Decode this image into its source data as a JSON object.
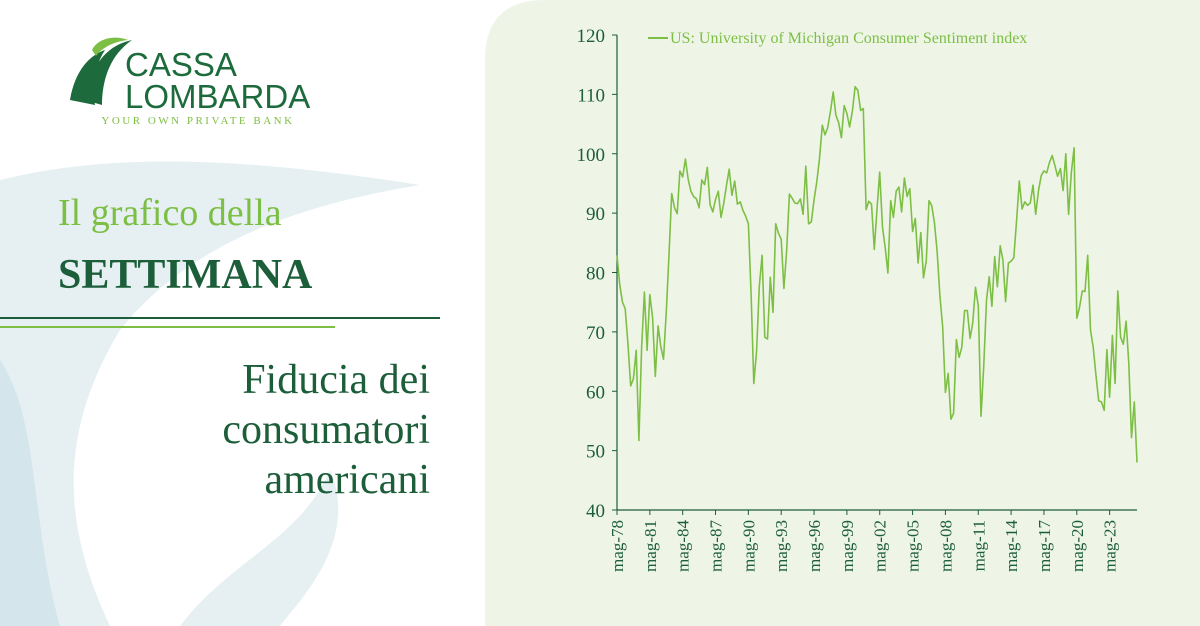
{
  "logo": {
    "line1": "CASSA",
    "line2": "LOMBARDA",
    "tagline": "YOUR OWN PRIVATE BANK"
  },
  "heading": {
    "line1": "Il grafico della",
    "line2": "SETTIMANA"
  },
  "subject": {
    "lines": [
      "Fiducia dei",
      "consumatori",
      "americani"
    ]
  },
  "chart_data": {
    "type": "line",
    "categories": [
      "mag-78",
      null,
      null,
      null,
      null,
      null,
      null,
      null,
      null,
      null,
      null,
      null,
      "mag-81",
      null,
      null,
      null,
      null,
      null,
      null,
      null,
      null,
      null,
      null,
      null,
      "mag-84",
      null,
      null,
      null,
      null,
      null,
      null,
      null,
      null,
      null,
      null,
      null,
      "mag-87",
      null,
      null,
      null,
      null,
      null,
      null,
      null,
      null,
      null,
      null,
      null,
      "mag-90",
      null,
      null,
      null,
      null,
      null,
      null,
      null,
      null,
      null,
      null,
      null,
      "mag-93",
      null,
      null,
      null,
      null,
      null,
      null,
      null,
      null,
      null,
      null,
      null,
      "mag-96",
      null,
      null,
      null,
      null,
      null,
      null,
      null,
      null,
      null,
      null,
      null,
      "mag-99",
      null,
      null,
      null,
      null,
      null,
      null,
      null,
      null,
      null,
      null,
      null,
      "mag-02",
      null,
      null,
      null,
      null,
      null,
      null,
      null,
      null,
      null,
      null,
      null,
      "mag-05",
      null,
      null,
      null,
      null,
      null,
      null,
      null,
      null,
      null,
      null,
      null,
      "mag-08",
      null,
      null,
      null,
      null,
      null,
      null,
      null,
      null,
      null,
      null,
      null,
      "mag-11",
      null,
      null,
      null,
      null,
      null,
      null,
      null,
      null,
      null,
      null,
      null,
      "mag-14",
      null,
      null,
      null,
      null,
      null,
      null,
      null,
      null,
      null,
      null,
      null,
      "mag-17",
      null,
      null,
      null,
      null,
      null,
      null,
      null,
      null,
      null,
      null,
      null,
      "mag-20",
      null,
      null,
      null,
      null,
      null,
      null,
      null,
      null,
      null,
      null,
      null,
      "mag-23",
      null,
      null,
      null,
      null,
      null,
      null,
      null,
      null,
      null,
      null
    ],
    "series": [
      {
        "name": "US: University of Michigan Consumer Sentiment index",
        "color": "#7dbf45",
        "values": [
          82.9,
          78,
          75,
          73.9,
          68.1,
          60.9,
          62.1,
          66.9,
          51.7,
          67.3,
          76.7,
          66.9,
          76.3,
          72.4,
          62.5,
          71.0,
          67.5,
          65.4,
          73.4,
          83.0,
          93.3,
          90.9,
          89.9,
          97.1,
          96.1,
          99.1,
          95.7,
          93.7,
          92.8,
          92.4,
          90.9,
          95.6,
          94.8,
          97.7,
          91.4,
          90.2,
          92.3,
          93.7,
          89.3,
          91.6,
          94.7,
          97.4,
          93.0,
          95.4,
          91.5,
          91.9,
          90.5,
          89.5,
          88.2,
          76.4,
          61.3,
          66.8,
          77.7,
          82.9,
          69.1,
          68.8,
          79.2,
          73.3,
          88.2,
          86.6,
          85.6,
          77.3,
          83.8,
          93.2,
          92.5,
          91.7,
          91.6,
          92.4,
          89.8,
          97.9,
          88.2,
          88.5,
          92.3,
          95.3,
          99.2,
          104.8,
          103.2,
          104.4,
          107.2,
          110.4,
          106.5,
          105.2,
          102.7,
          108.1,
          106.8,
          104.5,
          107.2,
          111.3,
          110.7,
          107.3,
          107.6,
          90.6,
          92.0,
          91.5,
          83.9,
          90.7,
          96.9,
          87.6,
          84.2,
          79.9,
          92.1,
          89.3,
          93.7,
          94.4,
          90.2,
          95.9,
          92.8,
          94.1,
          86.9,
          89.1,
          81.6,
          86.7,
          79.1,
          82.0,
          92.1,
          91.3,
          88.3,
          83.4,
          76.1,
          70.8,
          59.8,
          63.0,
          55.3,
          56.3,
          68.7,
          65.7,
          67.4,
          73.6,
          73.6,
          68.9,
          71.6,
          77.5,
          74.3,
          55.8,
          64.1,
          75.3,
          79.3,
          74.3,
          82.7,
          77.6,
          84.5,
          82.1,
          75.1,
          81.6,
          81.9,
          82.5,
          88.8,
          95.4,
          90.7,
          91.9,
          91.3,
          91.7,
          94.7,
          89.8,
          93.8,
          96.3,
          97.1,
          96.8,
          98.5,
          99.7,
          98.0,
          96.2,
          97.5,
          93.8,
          100.0,
          89.8,
          96.8,
          101.0,
          72.3,
          74.1,
          76.9,
          76.8,
          82.9,
          70.3,
          67.4,
          62.8,
          58.4,
          58.2,
          56.8,
          67.0,
          59.0,
          69.4,
          61.3,
          76.9,
          69.1,
          67.9,
          71.8,
          64.7,
          52.2,
          58.2,
          48.0
        ]
      }
    ],
    "ylim": [
      40,
      120
    ],
    "yticks": [
      40,
      50,
      60,
      70,
      80,
      90,
      100,
      110,
      120
    ]
  }
}
